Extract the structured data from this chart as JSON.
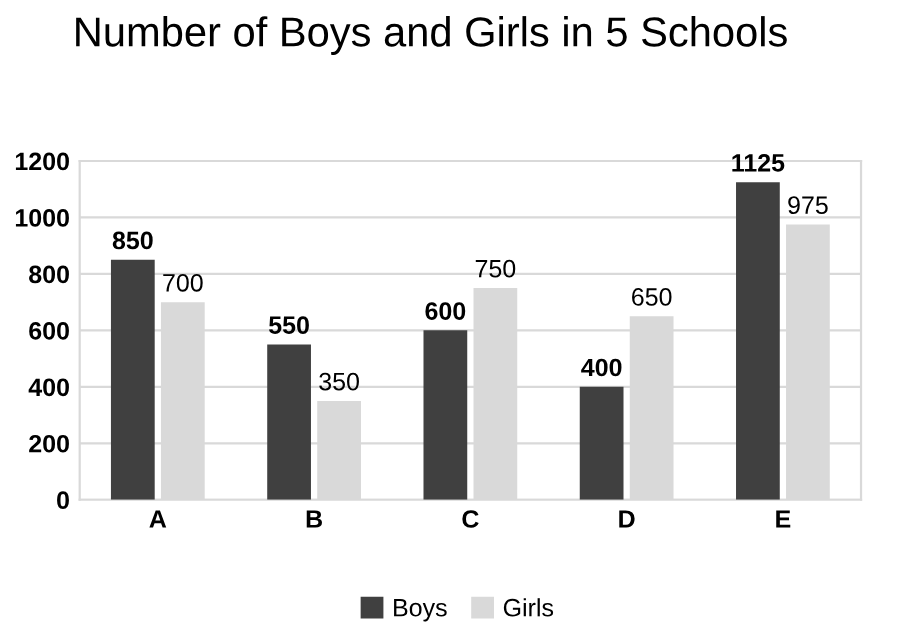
{
  "chart_data": {
    "type": "bar",
    "title": "Number of Boys and Girls in 5 Schools",
    "categories": [
      "A",
      "B",
      "C",
      "D",
      "E"
    ],
    "series": [
      {
        "name": "Boys",
        "color": "#404040",
        "values": [
          850,
          550,
          600,
          400,
          1125
        ]
      },
      {
        "name": "Girls",
        "color": "#d9d9d9",
        "values": [
          700,
          350,
          750,
          650,
          975
        ]
      }
    ],
    "ylim": [
      0,
      1200
    ],
    "yticks": [
      0,
      200,
      400,
      600,
      800,
      1000,
      1200
    ],
    "grid": "y",
    "legend": "bottom",
    "data_labels": true
  }
}
